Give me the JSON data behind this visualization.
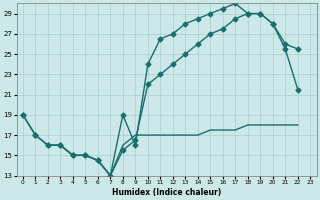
{
  "xlabel": "Humidex (Indice chaleur)",
  "background_color": "#cce8e8",
  "grid_color": "#aacece",
  "line_color": "#1a6e6e",
  "marker": "D",
  "marker_size": 2.5,
  "line_width": 1.0,
  "xlim": [
    -0.5,
    23.5
  ],
  "ylim": [
    13,
    30
  ],
  "xticks": [
    0,
    1,
    2,
    3,
    4,
    5,
    6,
    7,
    8,
    9,
    10,
    11,
    12,
    13,
    14,
    15,
    16,
    17,
    18,
    19,
    20,
    21,
    22,
    23
  ],
  "yticks": [
    13,
    15,
    17,
    19,
    21,
    23,
    25,
    27,
    29
  ],
  "line1_x": [
    0,
    1,
    2,
    3,
    4,
    5,
    6,
    7,
    8,
    9,
    10,
    11,
    12,
    13,
    14,
    15,
    16,
    17,
    18,
    19,
    20,
    21,
    22
  ],
  "line1_y": [
    19,
    17,
    16,
    16,
    15,
    15,
    14.5,
    13,
    19,
    16,
    24,
    26.5,
    27,
    28,
    28.5,
    29,
    29.5,
    30,
    29,
    29,
    28,
    26,
    25.5
  ],
  "line2_x": [
    0,
    1,
    2,
    3,
    4,
    5,
    6,
    7,
    8,
    9,
    10,
    11,
    12,
    13,
    14,
    15,
    16,
    17,
    18,
    19,
    20,
    21,
    22
  ],
  "line2_y": [
    19,
    17,
    16,
    16,
    15,
    15,
    14.5,
    13,
    15.5,
    16.5,
    22,
    23,
    24,
    25,
    26,
    27,
    27.5,
    28.5,
    29,
    29,
    28,
    25.5,
    21.5
  ],
  "line3_x": [
    2,
    3,
    4,
    5,
    6,
    7,
    8,
    9,
    10,
    11,
    12,
    13,
    14,
    15,
    16,
    17,
    18,
    19,
    20,
    21,
    22
  ],
  "line3_y": [
    16,
    16,
    15,
    15,
    14.5,
    13,
    16,
    17,
    17,
    17,
    17,
    17,
    17,
    17.5,
    17.5,
    17.5,
    18,
    18,
    18,
    18,
    18
  ]
}
